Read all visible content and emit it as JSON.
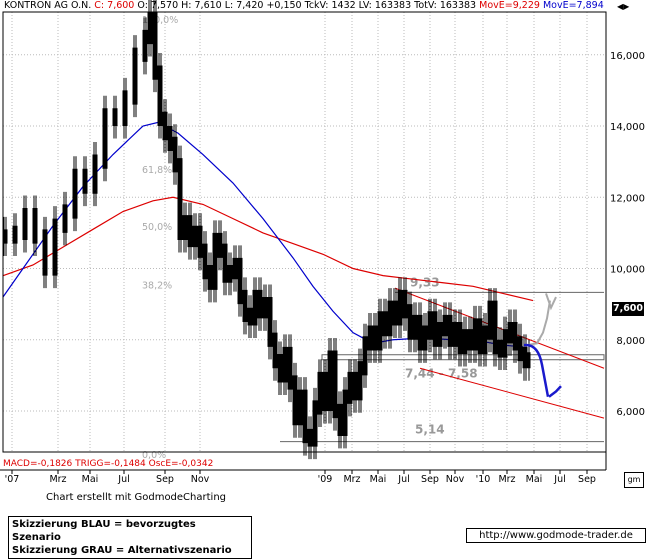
{
  "header": {
    "symbol": "KONTRON AG O.N.",
    "close_label": "C: 7,600",
    "ohlc": "O: 7,570 H: 7,610 L: 7,420 +0,150 TckV: 1432 LV: 163383 TotV: 163383",
    "ma1_label": "MovE=9,229",
    "ma2_label": "MovE=7,894",
    "colors": {
      "ma1": "#dd0000",
      "ma2": "#0000cc"
    }
  },
  "indicator_label": "MACD=-0,1826 TRIGG=-0,1484 OscE=-0,0342",
  "price_box": "7,600",
  "credit": "Chart erstellt mit GodmodeCharting",
  "legend": {
    "line1": "Skizzierung BLAU = bevorzugtes Szenario",
    "line2": "Skizzierung GRAU = Alternativszenario"
  },
  "url": "http://www.godmode-trader.de",
  "chart_data": {
    "type": "line",
    "title": "KONTRON AG O.N.",
    "y_ticks": [
      "16,000",
      "14,000",
      "12,000",
      "10,000",
      "8,000",
      "6,000"
    ],
    "y_values": [
      16,
      14,
      12,
      10,
      8,
      6
    ],
    "ylim": [
      4.85,
      17.2
    ],
    "x_ticks": [
      "'07",
      "Mrz",
      "Mai",
      "Jul",
      "Sep",
      "Nov",
      "'09",
      "Mrz",
      "Mai",
      "Jul",
      "Sep",
      "Nov",
      "'10",
      "Mrz",
      "Mai",
      "Jul",
      "Sep"
    ],
    "fib_labels": [
      "100,0%",
      "61,8%",
      "50,0%",
      "38,2%",
      "0,0%"
    ],
    "fib_values": [
      17.0,
      12.8,
      11.2,
      9.55,
      4.7
    ],
    "levels": [
      {
        "label": "9,33",
        "value": 9.33
      },
      {
        "label": "7,44 - 7,58",
        "low": 7.44,
        "high": 7.58
      },
      {
        "label": "5,14",
        "value": 5.14
      }
    ],
    "series": [
      {
        "name": "MovE=9,229",
        "color": "#dd0000",
        "points": [
          [
            0,
            9.8
          ],
          [
            30,
            10.1
          ],
          [
            60,
            10.6
          ],
          [
            90,
            11.1
          ],
          [
            120,
            11.6
          ],
          [
            150,
            11.9
          ],
          [
            170,
            12.0
          ],
          [
            200,
            11.8
          ],
          [
            230,
            11.4
          ],
          [
            260,
            11.0
          ],
          [
            290,
            10.7
          ],
          [
            320,
            10.4
          ],
          [
            350,
            10.0
          ],
          [
            380,
            9.8
          ],
          [
            410,
            9.7
          ],
          [
            440,
            9.6
          ],
          [
            470,
            9.5
          ],
          [
            500,
            9.3
          ],
          [
            530,
            9.1
          ]
        ]
      },
      {
        "name": "MovE=7,894",
        "color": "#0000cc",
        "points": [
          [
            0,
            9.2
          ],
          [
            20,
            10.0
          ],
          [
            50,
            11.2
          ],
          [
            80,
            12.3
          ],
          [
            110,
            13.2
          ],
          [
            140,
            14.0
          ],
          [
            155,
            14.1
          ],
          [
            175,
            13.8
          ],
          [
            200,
            13.2
          ],
          [
            230,
            12.4
          ],
          [
            260,
            11.4
          ],
          [
            290,
            10.3
          ],
          [
            310,
            9.5
          ],
          [
            330,
            8.8
          ],
          [
            350,
            8.2
          ],
          [
            370,
            7.9
          ],
          [
            390,
            8.0
          ],
          [
            420,
            8.05
          ],
          [
            450,
            8.0
          ],
          [
            480,
            7.95
          ],
          [
            500,
            7.85
          ],
          [
            520,
            7.8
          ]
        ]
      }
    ],
    "price": [
      [
        0,
        10.9
      ],
      [
        10,
        11.0
      ],
      [
        20,
        11.5
      ],
      [
        30,
        10.9
      ],
      [
        40,
        10.0
      ],
      [
        50,
        11.2
      ],
      [
        60,
        11.6
      ],
      [
        70,
        12.6
      ],
      [
        80,
        12.3
      ],
      [
        90,
        13.0
      ],
      [
        100,
        14.3
      ],
      [
        110,
        14.2
      ],
      [
        120,
        14.8
      ],
      [
        130,
        16.0
      ],
      [
        140,
        16.5
      ],
      [
        145,
        17.0
      ],
      [
        150,
        15.5
      ],
      [
        155,
        14.2
      ],
      [
        160,
        13.8
      ],
      [
        165,
        13.5
      ],
      [
        170,
        12.9
      ],
      [
        175,
        11.0
      ],
      [
        180,
        11.3
      ],
      [
        185,
        10.8
      ],
      [
        190,
        11.0
      ],
      [
        195,
        10.5
      ],
      [
        200,
        9.9
      ],
      [
        205,
        9.6
      ],
      [
        210,
        10.8
      ],
      [
        215,
        10.5
      ],
      [
        220,
        9.8
      ],
      [
        225,
        9.9
      ],
      [
        230,
        10.1
      ],
      [
        235,
        9.2
      ],
      [
        240,
        8.7
      ],
      [
        245,
        8.6
      ],
      [
        250,
        9.2
      ],
      [
        255,
        8.8
      ],
      [
        260,
        9.0
      ],
      [
        265,
        8.0
      ],
      [
        270,
        7.4
      ],
      [
        275,
        7.0
      ],
      [
        280,
        7.6
      ],
      [
        285,
        6.8
      ],
      [
        290,
        5.8
      ],
      [
        295,
        6.4
      ],
      [
        300,
        5.3
      ],
      [
        305,
        5.2
      ],
      [
        310,
        6.1
      ],
      [
        315,
        6.9
      ],
      [
        320,
        6.2
      ],
      [
        325,
        7.5
      ],
      [
        330,
        6.0
      ],
      [
        335,
        5.5
      ],
      [
        340,
        6.4
      ],
      [
        345,
        6.9
      ],
      [
        350,
        6.5
      ],
      [
        355,
        7.2
      ],
      [
        360,
        7.9
      ],
      [
        365,
        8.2
      ],
      [
        370,
        7.9
      ],
      [
        375,
        8.6
      ],
      [
        380,
        8.3
      ],
      [
        385,
        8.9
      ],
      [
        390,
        8.6
      ],
      [
        395,
        9.2
      ],
      [
        400,
        8.8
      ],
      [
        405,
        8.2
      ],
      [
        410,
        8.5
      ],
      [
        415,
        7.9
      ],
      [
        420,
        8.2
      ],
      [
        425,
        8.6
      ],
      [
        430,
        8.0
      ],
      [
        435,
        8.3
      ],
      [
        440,
        8.5
      ],
      [
        445,
        8.0
      ],
      [
        450,
        8.3
      ],
      [
        455,
        7.8
      ],
      [
        460,
        8.1
      ],
      [
        465,
        7.9
      ],
      [
        470,
        8.4
      ],
      [
        475,
        7.8
      ],
      [
        480,
        8.2
      ],
      [
        485,
        8.9
      ],
      [
        490,
        7.8
      ],
      [
        495,
        7.7
      ],
      [
        500,
        8.1
      ],
      [
        505,
        8.3
      ],
      [
        510,
        7.9
      ],
      [
        515,
        7.6
      ],
      [
        520,
        7.4
      ],
      [
        525,
        7.45
      ],
      [
        530,
        7.6
      ]
    ]
  }
}
